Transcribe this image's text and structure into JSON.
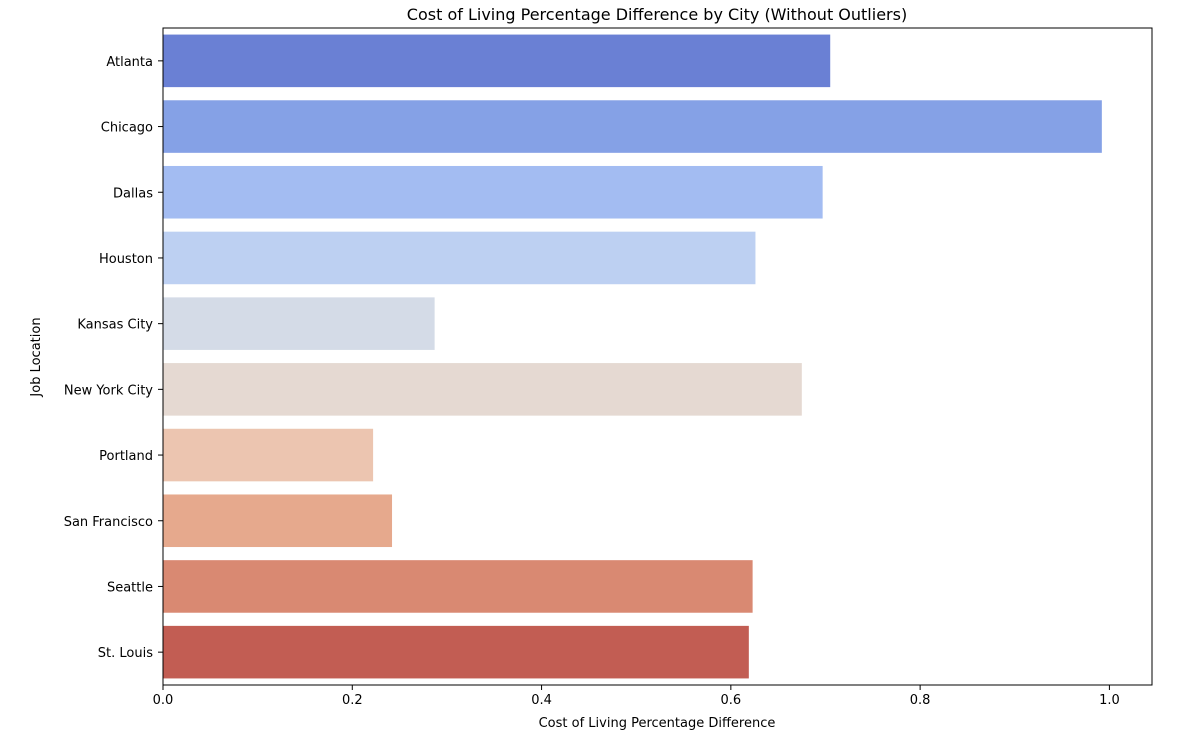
{
  "chart_data": {
    "type": "bar",
    "orientation": "horizontal",
    "title": "Cost of Living Percentage Difference by City (Without Outliers)",
    "xlabel": "Cost of Living Percentage Difference",
    "ylabel": "Job Location",
    "xlim": [
      0,
      1.045
    ],
    "xticks": [
      "0.0",
      "0.2",
      "0.4",
      "0.6",
      "0.8",
      "1.0"
    ],
    "xtick_values": [
      0.0,
      0.2,
      0.4,
      0.6,
      0.8,
      1.0
    ],
    "grid": false,
    "categories": [
      "Atlanta",
      "Chicago",
      "Dallas",
      "Houston",
      "Kansas City",
      "New York City",
      "Portland",
      "San Francisco",
      "Seattle",
      "St. Louis"
    ],
    "values": [
      0.705,
      0.992,
      0.697,
      0.626,
      0.287,
      0.675,
      0.222,
      0.242,
      0.623,
      0.619
    ],
    "colors": [
      "#6a80d4",
      "#85a1e6",
      "#a3bcf2",
      "#bdd0f2",
      "#d4dbe7",
      "#e5d9d2",
      "#ecc5b0",
      "#e6a98d",
      "#d98972",
      "#c25d53"
    ]
  }
}
